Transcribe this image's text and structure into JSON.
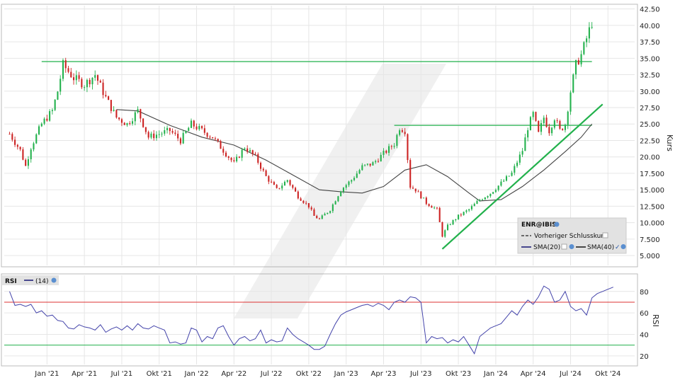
{
  "chart_data": {
    "type": "candlestick",
    "main": {
      "symbol_label": "ENR@IBIS",
      "y_axis_label": "Kurs",
      "y_ticks": [
        "5.000",
        "7.500",
        "10.000",
        "12.500",
        "15.000",
        "17.500",
        "20.00",
        "22.50",
        "25.00",
        "27.50",
        "30.00",
        "32.50",
        "35.00",
        "37.50",
        "40.00",
        "42.50"
      ],
      "y_tick_values": [
        5,
        7.5,
        10,
        12.5,
        15,
        17.5,
        20,
        22.5,
        25,
        27.5,
        30,
        32.5,
        35,
        37.5,
        40,
        42.5
      ],
      "ylim": [
        3.5,
        43
      ],
      "legend": {
        "prev_close": "Vorheriger Schlusskurs",
        "sma20": "SMA(20)",
        "sma40": "SMA(40)"
      },
      "key_points": [
        {
          "t": 0,
          "v": 23.5
        },
        {
          "t": 2,
          "v": 21.0
        },
        {
          "t": 3,
          "v": 18.6
        },
        {
          "t": 4,
          "v": 21.5
        },
        {
          "t": 6,
          "v": 25.0
        },
        {
          "t": 8,
          "v": 27.0
        },
        {
          "t": 9,
          "v": 30.0
        },
        {
          "t": 10,
          "v": 34.0
        },
        {
          "t": 12,
          "v": 32.0
        },
        {
          "t": 14,
          "v": 31.0
        },
        {
          "t": 16,
          "v": 32.5
        },
        {
          "t": 18,
          "v": 29.0
        },
        {
          "t": 20,
          "v": 26.0
        },
        {
          "t": 22,
          "v": 25.0
        },
        {
          "t": 24,
          "v": 27.0
        },
        {
          "t": 26,
          "v": 23.0
        },
        {
          "t": 28,
          "v": 23.5
        },
        {
          "t": 30,
          "v": 24.0
        },
        {
          "t": 32,
          "v": 22.5
        },
        {
          "t": 34,
          "v": 25.0
        },
        {
          "t": 36,
          "v": 24.0
        },
        {
          "t": 38,
          "v": 23.0
        },
        {
          "t": 40,
          "v": 21.0
        },
        {
          "t": 42,
          "v": 19.0
        },
        {
          "t": 44,
          "v": 21.5
        },
        {
          "t": 46,
          "v": 20.0
        },
        {
          "t": 48,
          "v": 17.0
        },
        {
          "t": 50,
          "v": 15.0
        },
        {
          "t": 52,
          "v": 16.5
        },
        {
          "t": 54,
          "v": 14.0
        },
        {
          "t": 56,
          "v": 12.5
        },
        {
          "t": 57,
          "v": 11.0
        },
        {
          "t": 58,
          "v": 10.5
        },
        {
          "t": 60,
          "v": 12.0
        },
        {
          "t": 62,
          "v": 15.0
        },
        {
          "t": 64,
          "v": 16.5
        },
        {
          "t": 66,
          "v": 18.5
        },
        {
          "t": 68,
          "v": 19.0
        },
        {
          "t": 70,
          "v": 20.5
        },
        {
          "t": 72,
          "v": 22.0
        },
        {
          "t": 73,
          "v": 24.5
        },
        {
          "t": 74,
          "v": 24.0
        },
        {
          "t": 75,
          "v": 15.5
        },
        {
          "t": 76,
          "v": 15.0
        },
        {
          "t": 78,
          "v": 13.0
        },
        {
          "t": 80,
          "v": 12.0
        },
        {
          "t": 81,
          "v": 8.0
        },
        {
          "t": 82,
          "v": 9.5
        },
        {
          "t": 84,
          "v": 11.0
        },
        {
          "t": 86,
          "v": 12.0
        },
        {
          "t": 88,
          "v": 13.5
        },
        {
          "t": 90,
          "v": 14.5
        },
        {
          "t": 92,
          "v": 16.0
        },
        {
          "t": 94,
          "v": 17.5
        },
        {
          "t": 96,
          "v": 21.0
        },
        {
          "t": 97,
          "v": 24.5
        },
        {
          "t": 98,
          "v": 26.5
        },
        {
          "t": 99,
          "v": 23.5
        },
        {
          "t": 100,
          "v": 26.0
        },
        {
          "t": 101,
          "v": 24.0
        },
        {
          "t": 102,
          "v": 26.0
        },
        {
          "t": 103,
          "v": 24.0
        },
        {
          "t": 104,
          "v": 25.0
        },
        {
          "t": 105,
          "v": 30.0
        },
        {
          "t": 106,
          "v": 34.0
        },
        {
          "t": 107,
          "v": 35.5
        },
        {
          "t": 108,
          "v": 38.0
        },
        {
          "t": 109,
          "v": 40.5
        }
      ],
      "sma40_points": [
        {
          "t": 20,
          "v": 27.2
        },
        {
          "t": 24,
          "v": 27.0
        },
        {
          "t": 30,
          "v": 24.8
        },
        {
          "t": 36,
          "v": 23.0
        },
        {
          "t": 42,
          "v": 21.8
        },
        {
          "t": 48,
          "v": 19.5
        },
        {
          "t": 54,
          "v": 16.8
        },
        {
          "t": 58,
          "v": 15.0
        },
        {
          "t": 62,
          "v": 14.7
        },
        {
          "t": 66,
          "v": 14.5
        },
        {
          "t": 70,
          "v": 15.5
        },
        {
          "t": 74,
          "v": 18.0
        },
        {
          "t": 78,
          "v": 18.8
        },
        {
          "t": 82,
          "v": 17.0
        },
        {
          "t": 86,
          "v": 14.5
        },
        {
          "t": 88,
          "v": 13.3
        },
        {
          "t": 92,
          "v": 13.5
        },
        {
          "t": 96,
          "v": 15.5
        },
        {
          "t": 100,
          "v": 18.0
        },
        {
          "t": 104,
          "v": 20.8
        },
        {
          "t": 107,
          "v": 23.0
        },
        {
          "t": 109,
          "v": 25.0
        }
      ],
      "resistance_lines": [
        {
          "from_t": 6,
          "to_t": 109,
          "v": 34.5
        },
        {
          "from_t": 72,
          "to_t": 109,
          "v": 24.8
        }
      ],
      "trend_line": {
        "from_t": 81,
        "from_v": 6.0,
        "to_t": 111,
        "to_v": 28.0
      },
      "colors": {
        "up": "#22b14c",
        "down": "#cc2222",
        "line": "#22b14c",
        "sma": "#444444",
        "resistance": "#22b14c"
      }
    },
    "rsi": {
      "label": "RSI",
      "period_label": "(14)",
      "y_axis_label": "RSI",
      "y_ticks": [
        "20",
        "40",
        "60",
        "80"
      ],
      "y_tick_values": [
        20,
        40,
        60,
        80
      ],
      "ylim": [
        12,
        95
      ],
      "levels": {
        "upper": 70,
        "lower": 30
      },
      "colors": {
        "line": "#4444aa",
        "upper": "#dd3333",
        "lower": "#22b14c"
      },
      "points": [
        {
          "t": 0,
          "v": 80
        },
        {
          "t": 1,
          "v": 67
        },
        {
          "t": 2,
          "v": 68
        },
        {
          "t": 3,
          "v": 66
        },
        {
          "t": 4,
          "v": 68
        },
        {
          "t": 5,
          "v": 60
        },
        {
          "t": 6,
          "v": 62
        },
        {
          "t": 7,
          "v": 57
        },
        {
          "t": 8,
          "v": 58
        },
        {
          "t": 9,
          "v": 53
        },
        {
          "t": 10,
          "v": 52
        },
        {
          "t": 11,
          "v": 46
        },
        {
          "t": 12,
          "v": 45
        },
        {
          "t": 13,
          "v": 49
        },
        {
          "t": 14,
          "v": 47
        },
        {
          "t": 15,
          "v": 46
        },
        {
          "t": 16,
          "v": 44
        },
        {
          "t": 17,
          "v": 49
        },
        {
          "t": 18,
          "v": 42
        },
        {
          "t": 19,
          "v": 45
        },
        {
          "t": 20,
          "v": 47
        },
        {
          "t": 21,
          "v": 44
        },
        {
          "t": 22,
          "v": 48
        },
        {
          "t": 23,
          "v": 44
        },
        {
          "t": 24,
          "v": 50
        },
        {
          "t": 25,
          "v": 46
        },
        {
          "t": 26,
          "v": 45
        },
        {
          "t": 27,
          "v": 48
        },
        {
          "t": 28,
          "v": 46
        },
        {
          "t": 29,
          "v": 44
        },
        {
          "t": 30,
          "v": 32
        },
        {
          "t": 31,
          "v": 33
        },
        {
          "t": 32,
          "v": 31
        },
        {
          "t": 33,
          "v": 32
        },
        {
          "t": 34,
          "v": 46
        },
        {
          "t": 35,
          "v": 44
        },
        {
          "t": 36,
          "v": 33
        },
        {
          "t": 37,
          "v": 38
        },
        {
          "t": 38,
          "v": 36
        },
        {
          "t": 39,
          "v": 46
        },
        {
          "t": 40,
          "v": 48
        },
        {
          "t": 41,
          "v": 38
        },
        {
          "t": 42,
          "v": 30
        },
        {
          "t": 43,
          "v": 36
        },
        {
          "t": 44,
          "v": 38
        },
        {
          "t": 45,
          "v": 34
        },
        {
          "t": 46,
          "v": 36
        },
        {
          "t": 47,
          "v": 44
        },
        {
          "t": 48,
          "v": 32
        },
        {
          "t": 49,
          "v": 35
        },
        {
          "t": 50,
          "v": 33
        },
        {
          "t": 51,
          "v": 34
        },
        {
          "t": 52,
          "v": 46
        },
        {
          "t": 53,
          "v": 40
        },
        {
          "t": 54,
          "v": 36
        },
        {
          "t": 55,
          "v": 33
        },
        {
          "t": 56,
          "v": 30
        },
        {
          "t": 57,
          "v": 26
        },
        {
          "t": 58,
          "v": 26
        },
        {
          "t": 59,
          "v": 29
        },
        {
          "t": 60,
          "v": 40
        },
        {
          "t": 61,
          "v": 50
        },
        {
          "t": 62,
          "v": 58
        },
        {
          "t": 63,
          "v": 61
        },
        {
          "t": 64,
          "v": 63
        },
        {
          "t": 65,
          "v": 65
        },
        {
          "t": 66,
          "v": 67
        },
        {
          "t": 67,
          "v": 68
        },
        {
          "t": 68,
          "v": 66
        },
        {
          "t": 69,
          "v": 69
        },
        {
          "t": 70,
          "v": 67
        },
        {
          "t": 71,
          "v": 63
        },
        {
          "t": 72,
          "v": 70
        },
        {
          "t": 73,
          "v": 72
        },
        {
          "t": 74,
          "v": 70
        },
        {
          "t": 75,
          "v": 75
        },
        {
          "t": 76,
          "v": 74
        },
        {
          "t": 77,
          "v": 70
        },
        {
          "t": 78,
          "v": 32
        },
        {
          "t": 79,
          "v": 38
        },
        {
          "t": 80,
          "v": 36
        },
        {
          "t": 81,
          "v": 37
        },
        {
          "t": 82,
          "v": 32
        },
        {
          "t": 83,
          "v": 35
        },
        {
          "t": 84,
          "v": 33
        },
        {
          "t": 85,
          "v": 38
        },
        {
          "t": 86,
          "v": 30
        },
        {
          "t": 87,
          "v": 22
        },
        {
          "t": 88,
          "v": 38
        },
        {
          "t": 89,
          "v": 42
        },
        {
          "t": 90,
          "v": 46
        },
        {
          "t": 91,
          "v": 48
        },
        {
          "t": 92,
          "v": 50
        },
        {
          "t": 93,
          "v": 56
        },
        {
          "t": 94,
          "v": 62
        },
        {
          "t": 95,
          "v": 58
        },
        {
          "t": 96,
          "v": 66
        },
        {
          "t": 97,
          "v": 72
        },
        {
          "t": 98,
          "v": 68
        },
        {
          "t": 99,
          "v": 75
        },
        {
          "t": 100,
          "v": 85
        },
        {
          "t": 101,
          "v": 82
        },
        {
          "t": 102,
          "v": 70
        },
        {
          "t": 103,
          "v": 72
        },
        {
          "t": 104,
          "v": 80
        },
        {
          "t": 105,
          "v": 66
        },
        {
          "t": 106,
          "v": 62
        },
        {
          "t": 107,
          "v": 64
        },
        {
          "t": 108,
          "v": 58
        },
        {
          "t": 109,
          "v": 74
        },
        {
          "t": 110,
          "v": 78
        },
        {
          "t": 111,
          "v": 80
        },
        {
          "t": 112,
          "v": 82
        },
        {
          "t": 113,
          "v": 84
        }
      ]
    },
    "x_ticks": [
      {
        "label": "Jan '21",
        "t": 7
      },
      {
        "label": "Apr '21",
        "t": 14
      },
      {
        "label": "Jul '21",
        "t": 21
      },
      {
        "label": "Okt '21",
        "t": 28
      },
      {
        "label": "Jan '22",
        "t": 35
      },
      {
        "label": "Apr '22",
        "t": 42
      },
      {
        "label": "Jul '22",
        "t": 49
      },
      {
        "label": "Okt '22",
        "t": 56
      },
      {
        "label": "Jan '23",
        "t": 63
      },
      {
        "label": "Apr '23",
        "t": 70
      },
      {
        "label": "Jul '23",
        "t": 77
      },
      {
        "label": "Okt '23",
        "t": 84
      },
      {
        "label": "Jan '24",
        "t": 91
      },
      {
        "label": "Apr '24",
        "t": 98
      },
      {
        "label": "Jul '24",
        "t": 105
      },
      {
        "label": "Okt '24",
        "t": 112
      }
    ],
    "x_range": [
      -1,
      117
    ]
  }
}
